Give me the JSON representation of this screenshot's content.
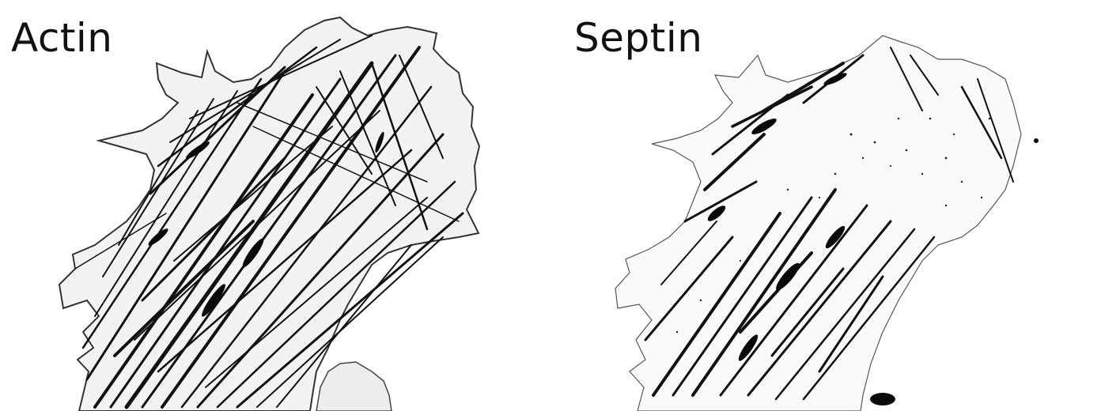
{
  "panels": [
    {
      "label": "Actin"
    },
    {
      "label": "Septin"
    }
  ]
}
